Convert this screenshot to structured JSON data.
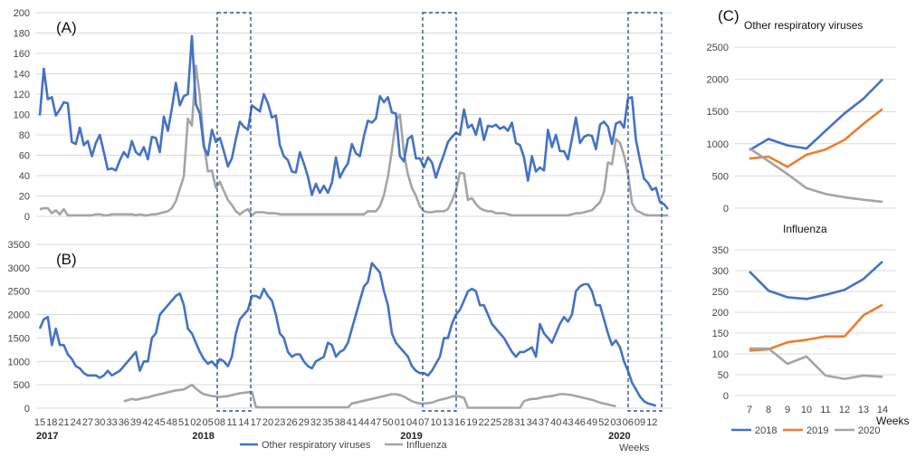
{
  "colors": {
    "rsv": "#4472C4",
    "flu": "#A5A5A5",
    "y2018": "#4472C4",
    "y2019": "#ED7D31",
    "y2020": "#A5A5A5",
    "box": "#2F5597"
  },
  "chart_data": [
    {
      "type": "line",
      "panel_label": "(A)",
      "ylim": [
        0,
        200
      ],
      "yticks": [
        0,
        20,
        40,
        60,
        80,
        100,
        120,
        140,
        160,
        180,
        200
      ],
      "series": [
        {
          "name": "Other respiratory viruses",
          "color": "#4472C4",
          "values": [
            99,
            145,
            115,
            117,
            99,
            105,
            112,
            111,
            73,
            71,
            87,
            70,
            74,
            59,
            72,
            80,
            63,
            46,
            47,
            45,
            55,
            63,
            58,
            74,
            63,
            60,
            68,
            56,
            78,
            77,
            63,
            98,
            84,
            106,
            131,
            109,
            118,
            120,
            177,
            110,
            101,
            68,
            60,
            85,
            73,
            77,
            64,
            49,
            57,
            76,
            93,
            88,
            85,
            109,
            106,
            103,
            120,
            111,
            97,
            99,
            70,
            59,
            55,
            44,
            43,
            63,
            52,
            39,
            21,
            32,
            23,
            30,
            23,
            33,
            58,
            38,
            46,
            52,
            71,
            62,
            59,
            79,
            94,
            92,
            96,
            118,
            112,
            117,
            102,
            101,
            59,
            54,
            76,
            79,
            57,
            57,
            48,
            58,
            53,
            38,
            50,
            61,
            73,
            78,
            82,
            80,
            105,
            87,
            90,
            80,
            96,
            75,
            89,
            88,
            90,
            86,
            88,
            84,
            92,
            72,
            70,
            58,
            35,
            59,
            44,
            48,
            45,
            85,
            68,
            80,
            64,
            64,
            56,
            76,
            97,
            72,
            78,
            80,
            79,
            66,
            90,
            93,
            88,
            71,
            91,
            93,
            87,
            116,
            117,
            75,
            55,
            37,
            33,
            26,
            28,
            14,
            12,
            7
          ]
        },
        {
          "name": "Influenza",
          "color": "#A5A5A5",
          "values": [
            7,
            8,
            8,
            3,
            6,
            2,
            7,
            1,
            1,
            1,
            1,
            1,
            1,
            1,
            2,
            2,
            1,
            1,
            2,
            2,
            2,
            2,
            2,
            2,
            1,
            2,
            1,
            1,
            2,
            2,
            3,
            4,
            5,
            8,
            15,
            27,
            39,
            96,
            89,
            148,
            118,
            72,
            44,
            45,
            28,
            34,
            25,
            16,
            11,
            5,
            2,
            5,
            7,
            1,
            4,
            4,
            4,
            3,
            3,
            3,
            2,
            2,
            2,
            2,
            2,
            2,
            2,
            2,
            2,
            2,
            2,
            2,
            2,
            2,
            2,
            2,
            2,
            2,
            2,
            2,
            2,
            2,
            5,
            5,
            5,
            10,
            21,
            39,
            65,
            94,
            100,
            62,
            41,
            28,
            20,
            10,
            5,
            4,
            4,
            5,
            5,
            5,
            7,
            15,
            25,
            43,
            42,
            16,
            18,
            12,
            8,
            6,
            5,
            5,
            3,
            3,
            3,
            2,
            1,
            1,
            1,
            1,
            1,
            1,
            1,
            1,
            1,
            1,
            1,
            1,
            1,
            1,
            1,
            2,
            3,
            3,
            4,
            5,
            6,
            10,
            14,
            24,
            53,
            51,
            76,
            72,
            60,
            42,
            13,
            6,
            4,
            2,
            1,
            1,
            1,
            1,
            1,
            1
          ]
        }
      ]
    },
    {
      "type": "line",
      "panel_label": "(B)",
      "ylim": [
        0,
        3500
      ],
      "yticks": [
        0,
        500,
        1000,
        1500,
        2000,
        2500,
        3000,
        3500
      ],
      "x_tick_labels": [
        "15",
        "18",
        "21",
        "24",
        "27",
        "30",
        "33",
        "36",
        "39",
        "42",
        "45",
        "48",
        "51",
        "02",
        "05",
        "08",
        "11",
        "14",
        "17",
        "20",
        "23",
        "26",
        "29",
        "32",
        "35",
        "38",
        "41",
        "44",
        "47",
        "50",
        "01",
        "04",
        "07",
        "10",
        "13",
        "16",
        "19",
        "22",
        "25",
        "28",
        "31",
        "34",
        "37",
        "40",
        "43",
        "46",
        "49",
        "52",
        "03",
        "06",
        "09",
        "12"
      ],
      "year_labels": [
        "2017",
        "2018",
        "2019",
        "2020"
      ],
      "x_axis_label": "Weeks",
      "series": [
        {
          "name": "Other respiratory viruses",
          "color": "#4472C4",
          "values": [
            1700,
            1900,
            1950,
            1350,
            1700,
            1350,
            1350,
            1150,
            1050,
            900,
            850,
            750,
            700,
            700,
            700,
            650,
            700,
            800,
            700,
            750,
            800,
            900,
            1000,
            1100,
            1200,
            800,
            1000,
            1000,
            1500,
            1600,
            2000,
            2100,
            2200,
            2300,
            2400,
            2450,
            2200,
            1700,
            1600,
            1400,
            1200,
            1050,
            950,
            1000,
            900,
            1050,
            1000,
            900,
            1100,
            1600,
            1900,
            2000,
            2100,
            2400,
            2400,
            2350,
            2550,
            2400,
            2300,
            2000,
            1600,
            1500,
            1200,
            1100,
            1150,
            1150,
            1000,
            900,
            850,
            1000,
            1050,
            1100,
            1400,
            1350,
            1100,
            1200,
            1250,
            1400,
            1700,
            2000,
            2300,
            2600,
            2700,
            3100,
            3000,
            2900,
            2500,
            2200,
            1600,
            1400,
            1300,
            1200,
            1100,
            900,
            800,
            750,
            750,
            700,
            800,
            950,
            1100,
            1500,
            1500,
            1800,
            2000,
            2100,
            2300,
            2500,
            2550,
            2500,
            2200,
            2200,
            2000,
            1800,
            1700,
            1600,
            1500,
            1350,
            1200,
            1100,
            1200,
            1200,
            1250,
            1300,
            1100,
            1800,
            1600,
            1500,
            1400,
            1600,
            1800,
            1950,
            1850,
            2000,
            2500,
            2600,
            2650,
            2650,
            2500,
            2200,
            2200,
            1900,
            1600,
            1350,
            1450,
            1300,
            1000,
            800,
            550,
            400,
            250,
            150,
            100,
            80,
            50
          ]
        },
        {
          "name": "Influenza",
          "color": "#A5A5A5",
          "values": [
            null,
            null,
            null,
            null,
            null,
            null,
            null,
            null,
            null,
            null,
            null,
            null,
            null,
            null,
            null,
            null,
            null,
            null,
            null,
            null,
            null,
            150,
            170,
            200,
            180,
            200,
            220,
            230,
            260,
            280,
            300,
            320,
            340,
            360,
            380,
            390,
            400,
            450,
            500,
            420,
            350,
            300,
            280,
            260,
            250,
            240,
            250,
            260,
            280,
            300,
            320,
            330,
            340,
            350,
            30,
            20,
            20,
            20,
            20,
            20,
            20,
            20,
            20,
            20,
            20,
            20,
            20,
            20,
            20,
            20,
            20,
            20,
            20,
            20,
            20,
            20,
            20,
            20,
            100,
            120,
            140,
            160,
            180,
            200,
            220,
            240,
            260,
            280,
            300,
            300,
            280,
            250,
            200,
            150,
            120,
            100,
            100,
            110,
            120,
            150,
            180,
            200,
            220,
            250,
            260,
            250,
            220,
            10,
            10,
            10,
            10,
            10,
            10,
            10,
            10,
            10,
            10,
            10,
            10,
            10,
            10,
            150,
            180,
            200,
            200,
            220,
            240,
            250,
            260,
            280,
            300,
            300,
            290,
            280,
            260,
            240,
            220,
            200,
            180,
            150,
            120,
            100,
            80,
            60,
            40
          ]
        }
      ]
    },
    {
      "type": "line",
      "panel_label": "(C)",
      "title": "Other respiratory viruses",
      "categories": [
        "7",
        "8",
        "9",
        "10",
        "11",
        "12",
        "13",
        "14"
      ],
      "ylim": [
        0,
        2500
      ],
      "yticks": [
        0,
        500,
        1000,
        1500,
        2000,
        2500
      ],
      "series": [
        {
          "name": "2018",
          "color": "#4472C4",
          "values": [
            900,
            1075,
            975,
            925,
            1200,
            1470,
            1700,
            2000
          ]
        },
        {
          "name": "2019",
          "color": "#ED7D31",
          "values": [
            770,
            800,
            640,
            830,
            910,
            1060,
            1310,
            1540
          ]
        },
        {
          "name": "2020",
          "color": "#A5A5A5",
          "values": [
            930,
            730,
            530,
            310,
            220,
            170,
            130,
            100
          ]
        }
      ]
    },
    {
      "type": "line",
      "title": "Influenza",
      "categories": [
        "7",
        "8",
        "9",
        "10",
        "11",
        "12",
        "13",
        "14"
      ],
      "ylim": [
        0,
        350
      ],
      "yticks": [
        0,
        50,
        100,
        150,
        200,
        250,
        300,
        350
      ],
      "x_axis_label": "Weeks",
      "series": [
        {
          "name": "2018",
          "color": "#4472C4",
          "values": [
            298,
            252,
            236,
            232,
            242,
            254,
            280,
            322
          ]
        },
        {
          "name": "2019",
          "color": "#ED7D31",
          "values": [
            108,
            111,
            128,
            134,
            142,
            142,
            193,
            218
          ]
        },
        {
          "name": "2020",
          "color": "#A5A5A5",
          "values": [
            113,
            113,
            76,
            94,
            48,
            40,
            48,
            45
          ]
        }
      ]
    }
  ],
  "legend_ab": [
    {
      "label": "Other respiratory viruses",
      "color": "#4472C4"
    },
    {
      "label": "Influenza",
      "color": "#A5A5A5"
    }
  ],
  "legend_c": [
    {
      "label": "2018",
      "color": "#4472C4"
    },
    {
      "label": "2019",
      "color": "#ED7D31"
    },
    {
      "label": "2020",
      "color": "#A5A5A5"
    }
  ]
}
